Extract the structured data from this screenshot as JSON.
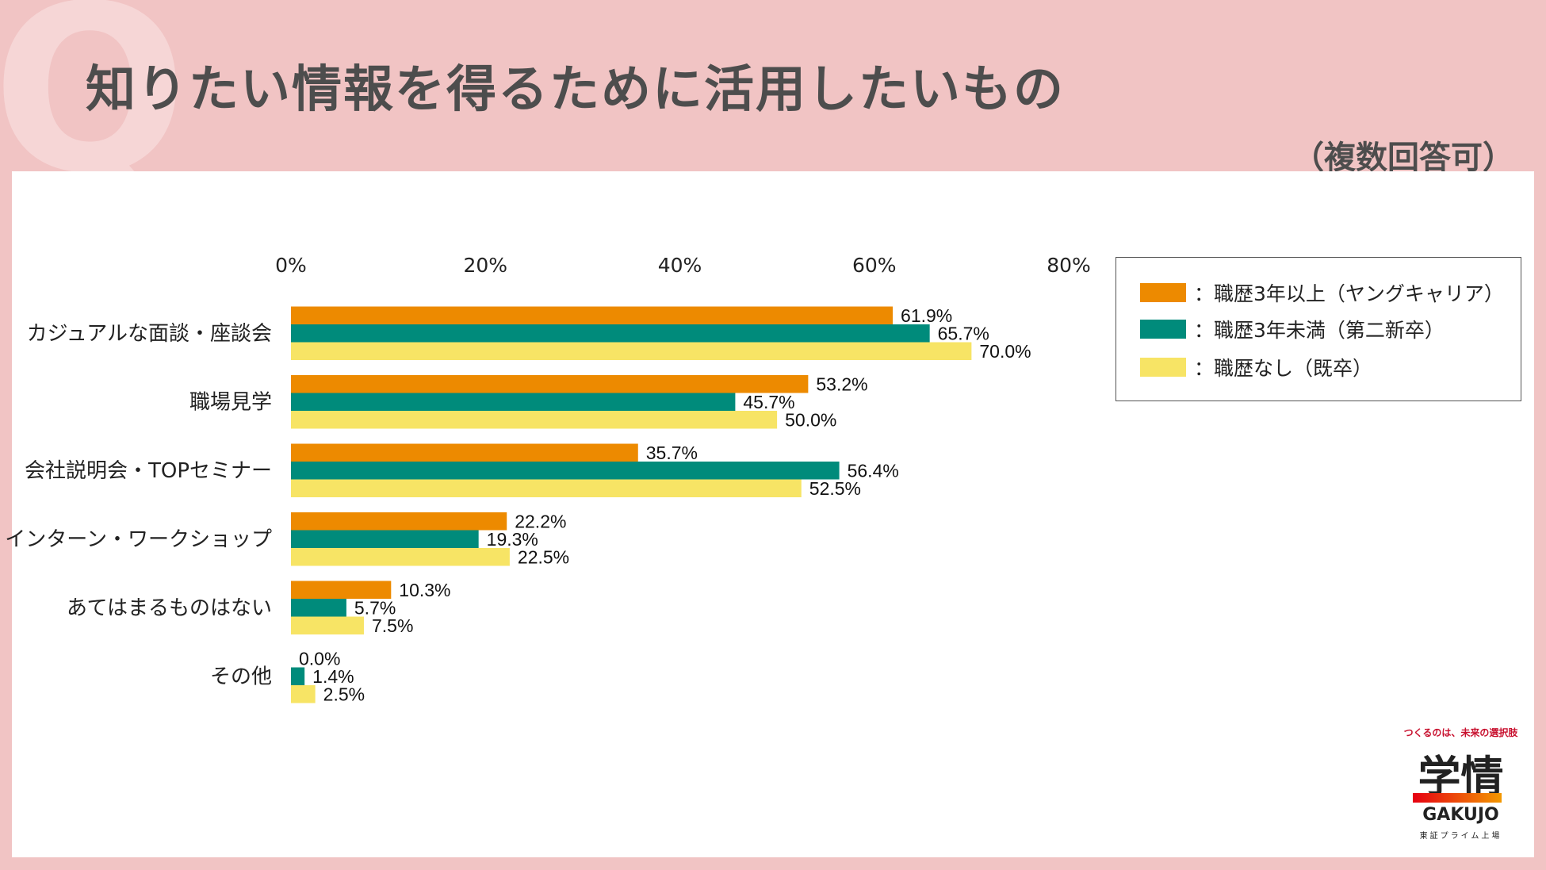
{
  "header": {
    "q_mark": "Q",
    "title": "知りたい情報を得るために活用したいもの",
    "subtitle": "（複数回答可）"
  },
  "chart_data": {
    "type": "bar",
    "orientation": "horizontal",
    "title": "知りたい情報を得るために活用したいもの",
    "categories": [
      "カジュアルな面談・座談会",
      "職場見学",
      "会社説明会・TOPセミナー",
      "インターン・ワークショップ",
      "あてはまるものはない",
      "その他"
    ],
    "series": [
      {
        "name": "：職歴3年以上（ヤングキャリア）",
        "color": "#ed8a00",
        "values": [
          61.9,
          53.2,
          35.7,
          22.2,
          10.3,
          0.0
        ]
      },
      {
        "name": "：職歴3年未満（第二新卒）",
        "color": "#008b7b",
        "values": [
          65.7,
          45.7,
          56.4,
          19.3,
          5.7,
          1.4
        ]
      },
      {
        "name": "：職歴なし（既卒）",
        "color": "#f7e465",
        "values": [
          70.0,
          50.0,
          52.5,
          22.5,
          7.5,
          2.5
        ]
      }
    ],
    "xlim": [
      0,
      80
    ],
    "x_ticks": [
      "0%",
      "20%",
      "40%",
      "60%",
      "80%"
    ],
    "value_suffix": "%",
    "grid": false,
    "legend_position": "top-right"
  },
  "logo": {
    "tagline": "つくるのは、未来の選択肢",
    "main": "学情",
    "en": "GAKUJO",
    "sub": "東証プライム上場"
  }
}
